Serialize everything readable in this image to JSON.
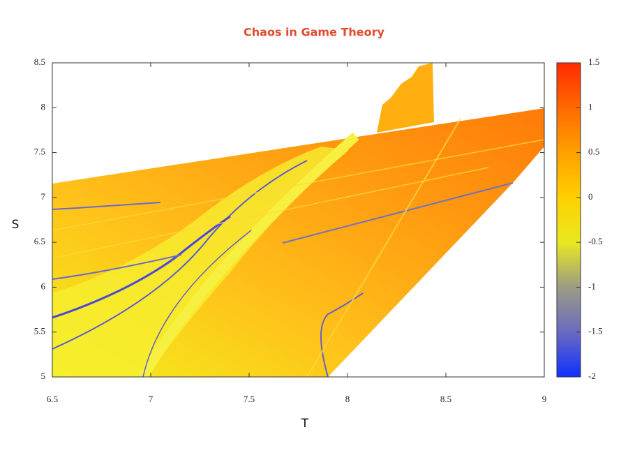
{
  "chart_data": {
    "type": "heatmap",
    "title": "Chaos in Game Theory",
    "x_label": "T",
    "y_label": "S",
    "xlim": [
      6.5,
      9
    ],
    "xticks": [
      6.5,
      7,
      7.5,
      8,
      8.5,
      9
    ],
    "ylim": [
      5,
      8.5
    ],
    "yticks": [
      5,
      5.5,
      6,
      6.5,
      7,
      7.5,
      8,
      8.5
    ],
    "colorbar": {
      "lim": [
        -2,
        1.5
      ],
      "ticks": [
        1.5,
        1,
        0.5,
        0,
        -0.5,
        -1,
        -1.5,
        -2
      ],
      "colors": [
        "#ff2a00",
        "#ff6a00",
        "#ffa000",
        "#ffd000",
        "#e8e820",
        "#9c9c84",
        "#6a6ac0",
        "#1030ff"
      ]
    }
  }
}
